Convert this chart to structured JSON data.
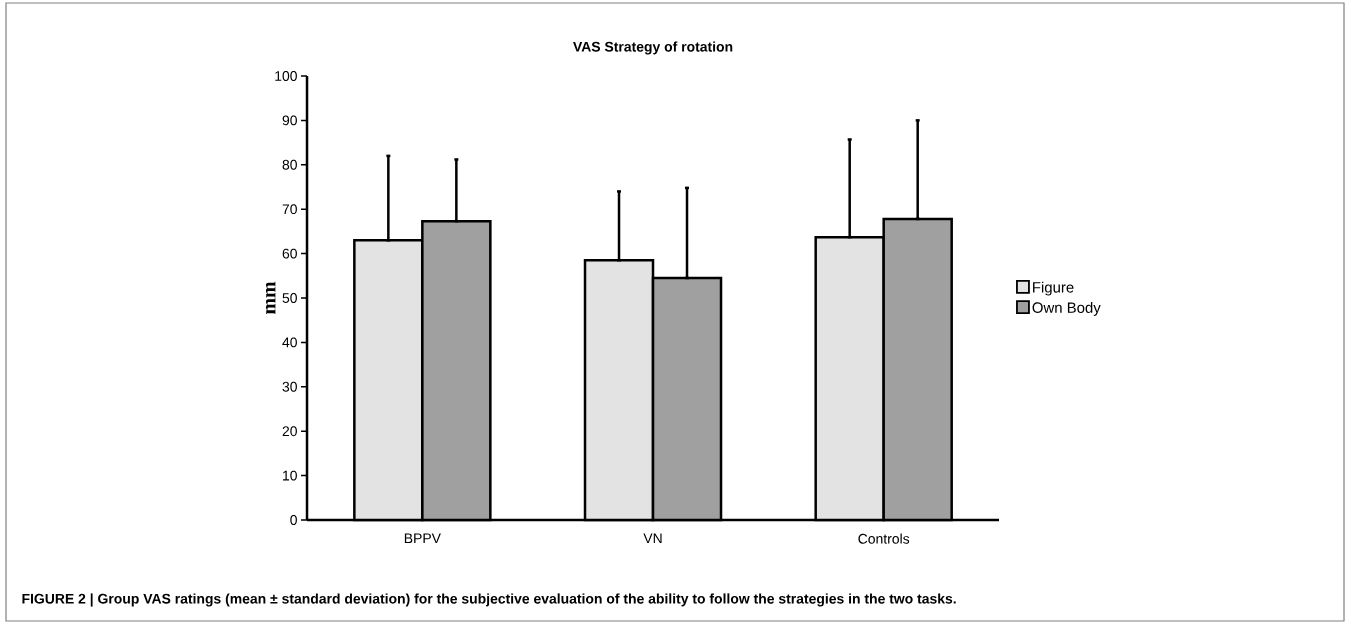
{
  "chart_data": {
    "type": "bar",
    "title": "VAS Strategy of rotation",
    "ylabel": "mm",
    "categories": [
      "BPPV",
      "VN",
      "Controls"
    ],
    "series": [
      {
        "name": "Figure",
        "color": "#e3e3e3",
        "values": [
          63,
          58.5,
          63.7
        ],
        "errors": [
          [
            63,
            82
          ],
          [
            58.5,
            74
          ],
          [
            63.7,
            85.7
          ]
        ]
      },
      {
        "name": "Own Body",
        "color": "#a0a0a0",
        "values": [
          67.3,
          54.5,
          67.8
        ],
        "errors": [
          [
            67.3,
            81.2
          ],
          [
            54.5,
            74.8
          ],
          [
            67.8,
            90
          ]
        ]
      }
    ],
    "ylim": [
      0,
      100
    ],
    "yticks": [
      0,
      10,
      20,
      30,
      40,
      50,
      60,
      70,
      80,
      90,
      100
    ],
    "legend": "right",
    "grid": false,
    "annotations": [
      "FIGURE 2 | Group VAS ratings (mean ± standard deviation) for the subjective evaluation of the ability to follow the strategies in the two tasks."
    ]
  }
}
